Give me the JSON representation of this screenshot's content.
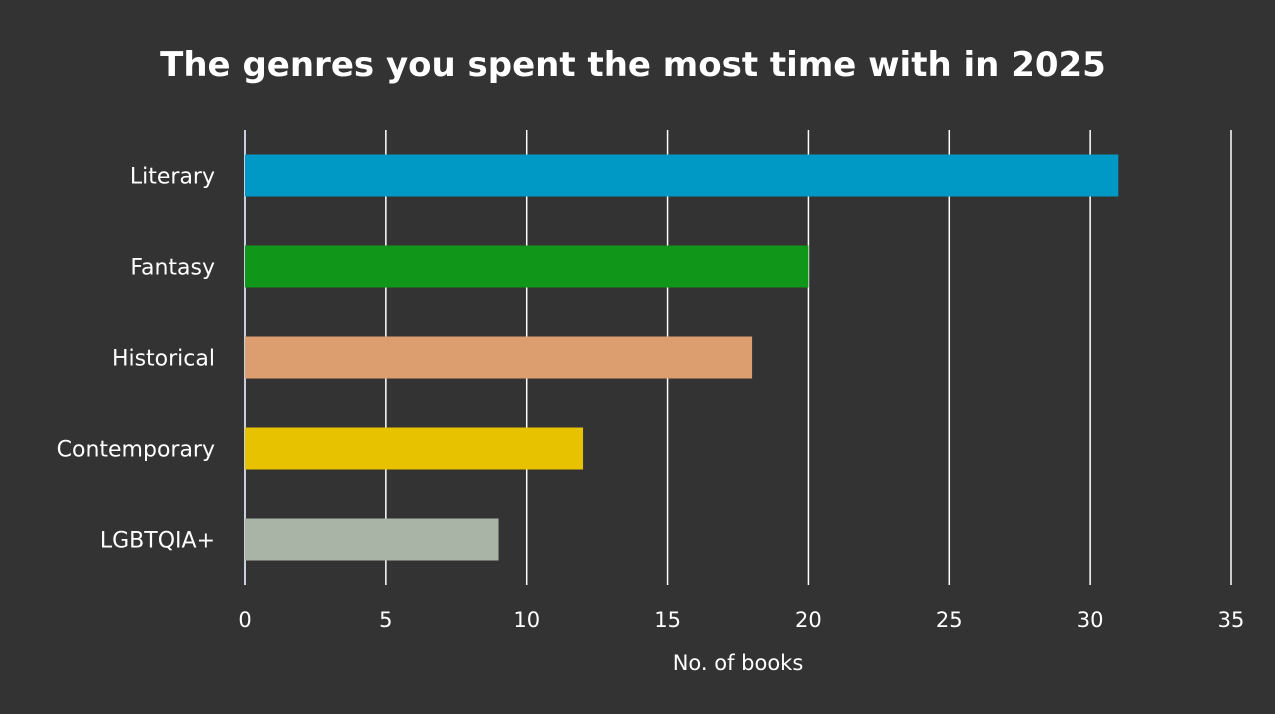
{
  "chart_data": {
    "type": "bar",
    "orientation": "horizontal",
    "title": "The genres you spent the most time with in 2025",
    "xlabel": "No. of books",
    "ylabel": "",
    "xlim": [
      0,
      35
    ],
    "ticks": [
      0,
      5,
      10,
      15,
      20,
      25,
      30,
      35
    ],
    "tick_labels": [
      "0",
      "5",
      "10",
      "15",
      "20",
      "25",
      "30",
      "35"
    ],
    "grid": true,
    "legend": "none",
    "categories": [
      "Literary",
      "Fantasy",
      "Historical",
      "Contemporary",
      "LGBTQIA+"
    ],
    "values": [
      31,
      20,
      18,
      12,
      9
    ],
    "colors": [
      "#0099c6",
      "#109618",
      "#dc9e6e",
      "#e6c200",
      "#a9b3a6"
    ]
  },
  "theme": {
    "background": "#333333",
    "text": "#ffffff",
    "grid": "#ffffff",
    "baseline": "#c8d0e0"
  }
}
